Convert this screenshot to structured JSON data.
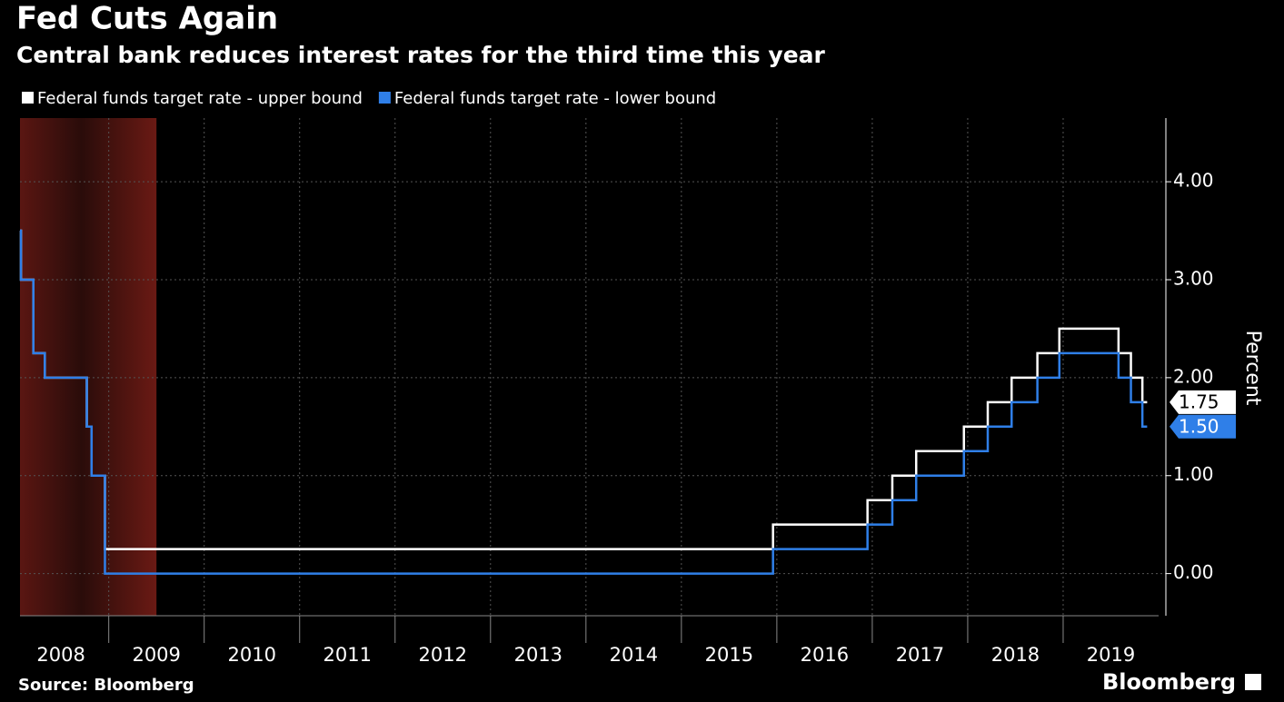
{
  "chart_data": {
    "type": "step-line",
    "title": "Fed Cuts Again",
    "subtitle": "Central bank reduces interest rates for the third time this year",
    "y_axis_label": "Percent",
    "source": "Source: Bloomberg",
    "brand": "Bloomberg",
    "x": [
      2008.07,
      2008.08,
      2008.21,
      2008.33,
      2008.77,
      2008.82,
      2008.96,
      2015.96,
      2016.95,
      2017.21,
      2017.46,
      2017.96,
      2018.21,
      2018.46,
      2018.73,
      2018.96,
      2019.58,
      2019.71,
      2019.83,
      2019.88
    ],
    "series": [
      {
        "name": "Federal funds target rate - upper bound",
        "color": "#ffffff",
        "values": [
          3.5,
          3.0,
          2.25,
          2.0,
          1.5,
          1.0,
          0.25,
          0.5,
          0.75,
          1.0,
          1.25,
          1.5,
          1.75,
          2.0,
          2.25,
          2.5,
          2.25,
          2.0,
          1.75,
          1.75
        ],
        "value_labels": [
          null,
          null,
          null,
          null,
          null,
          null,
          null,
          null,
          null,
          null,
          null,
          null,
          null,
          null,
          null,
          null,
          null,
          null,
          null,
          "1.75"
        ]
      },
      {
        "name": "Federal funds target rate - lower bound",
        "color": "#2f7fe8",
        "values": [
          3.5,
          3.0,
          2.25,
          2.0,
          1.5,
          1.0,
          0.0,
          0.25,
          0.5,
          0.75,
          1.0,
          1.25,
          1.5,
          1.75,
          2.0,
          2.25,
          2.0,
          1.75,
          1.5,
          1.5
        ],
        "value_labels": [
          null,
          null,
          null,
          null,
          null,
          null,
          null,
          null,
          null,
          null,
          null,
          null,
          null,
          null,
          null,
          null,
          null,
          null,
          null,
          "1.50"
        ]
      }
    ],
    "shaded_range": [
      2007.92,
      2009.5
    ],
    "xlim": [
      2008.07,
      2020
    ],
    "xticks": [
      2008,
      2009,
      2010,
      2011,
      2012,
      2013,
      2014,
      2015,
      2016,
      2017,
      2018,
      2019
    ],
    "ylim": [
      -0.43,
      4.65
    ],
    "yticks": [
      {
        "value": 0,
        "label": "0.00"
      },
      {
        "value": 1,
        "label": "1.00"
      },
      {
        "value": 2,
        "label": "2.00"
      },
      {
        "value": 3,
        "label": "3.00"
      },
      {
        "value": 4,
        "label": "4.00"
      }
    ],
    "grid": true
  }
}
